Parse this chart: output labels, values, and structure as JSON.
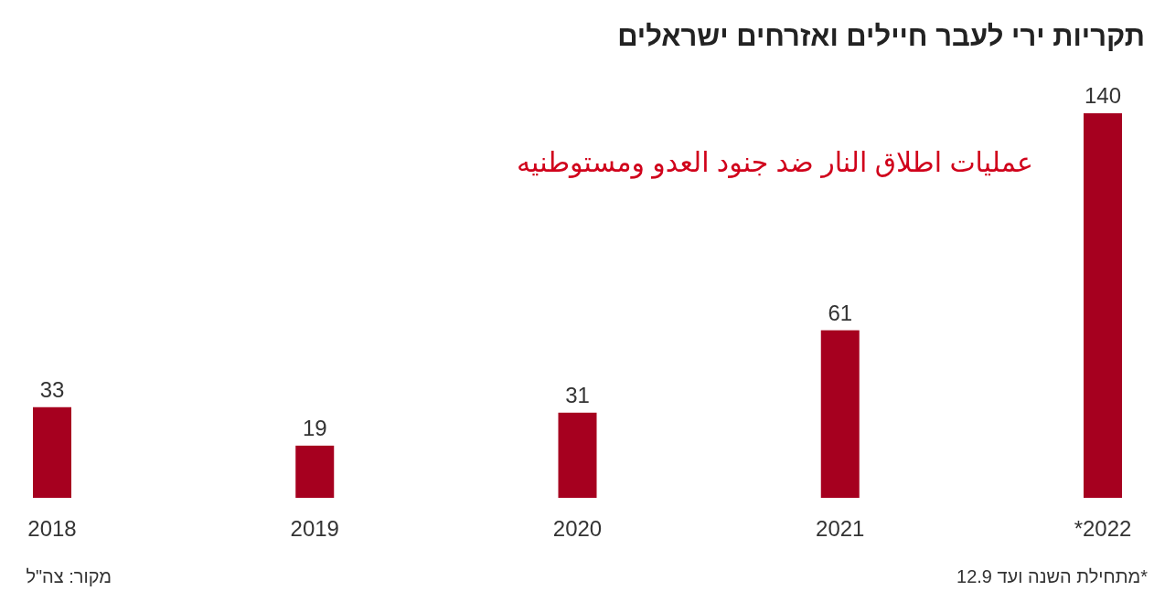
{
  "chart_data": {
    "type": "bar",
    "title": "תקריות ירי לעבר חיילים ואזרחים ישראלים",
    "categories": [
      "2018",
      "2019",
      "2020",
      "2021",
      "*2022"
    ],
    "values": [
      33,
      19,
      31,
      61,
      140
    ],
    "color": "#a6001f",
    "data_labels": true,
    "annotations": [
      "عمليات اطلاق النار ضد جنود العدو ومستوطنيه",
      "מקור: צה\"ל",
      "*מתחילת השנה ועד 12.9"
    ]
  }
}
